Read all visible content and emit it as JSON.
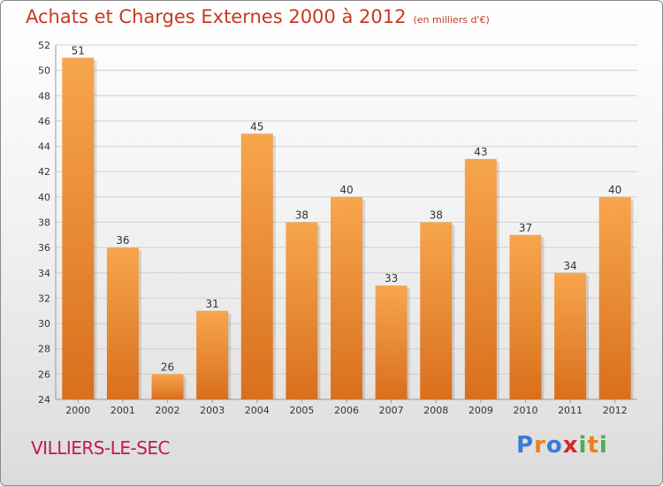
{
  "header": {
    "title": "Achats et Charges Externes 2000 à 2012",
    "unit": "(en milliers d'€)"
  },
  "footer": {
    "city": "VILLIERS-LE-SEC",
    "logo_letters": [
      "P",
      "r",
      "o",
      "x",
      "i",
      "t",
      "i"
    ],
    "logo_colors": [
      "#3a7bd5",
      "#e8811d",
      "#3a7bd5",
      "#d62828",
      "#4caf50",
      "#e8811d",
      "#4caf50"
    ]
  },
  "chart_data": {
    "type": "bar",
    "categories": [
      "2000",
      "2001",
      "2002",
      "2003",
      "2004",
      "2005",
      "2006",
      "2007",
      "2008",
      "2009",
      "2010",
      "2011",
      "2012"
    ],
    "values": [
      51,
      36,
      26,
      31,
      45,
      38,
      40,
      33,
      38,
      43,
      37,
      34,
      40
    ],
    "ylim": [
      24,
      52
    ],
    "yticks": [
      24,
      26,
      28,
      30,
      32,
      34,
      36,
      38,
      40,
      42,
      44,
      46,
      48,
      50,
      52
    ],
    "grid": true,
    "bar_color_top": "#f7a64d",
    "bar_color_bottom": "#d96f1c"
  }
}
